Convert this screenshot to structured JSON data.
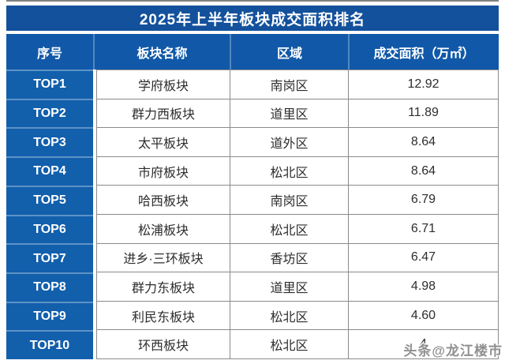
{
  "chart_data": {
    "type": "table",
    "title": "2025年上半年板块成交面积排名",
    "columns": [
      "序号",
      "板块名称",
      "区域",
      "成交面积（万㎡）"
    ],
    "rows": [
      {
        "rank": "TOP1",
        "name": "学府板块",
        "district": "南岗区",
        "area": "12.92"
      },
      {
        "rank": "TOP2",
        "name": "群力西板块",
        "district": "道里区",
        "area": "11.89"
      },
      {
        "rank": "TOP3",
        "name": "太平板块",
        "district": "道外区",
        "area": "8.64"
      },
      {
        "rank": "TOP4",
        "name": "市府板块",
        "district": "松北区",
        "area": "8.64"
      },
      {
        "rank": "TOP5",
        "name": "哈西板块",
        "district": "南岗区",
        "area": "6.79"
      },
      {
        "rank": "TOP6",
        "name": "松浦板块",
        "district": "松北区",
        "area": "6.71"
      },
      {
        "rank": "TOP7",
        "name": "进乡·三环板块",
        "district": "香坊区",
        "area": "6.47"
      },
      {
        "rank": "TOP8",
        "name": "群力东板块",
        "district": "道里区",
        "area": "4.98"
      },
      {
        "rank": "TOP9",
        "name": "利民东板块",
        "district": "松北区",
        "area": "4.60"
      },
      {
        "rank": "TOP10",
        "name": "环西板块",
        "district": "松北区",
        "area": "4"
      }
    ],
    "notes": "TOP10 area value partially obscured by watermark; only digit 4 visible"
  },
  "watermark": {
    "text": "头条@龙江楼市"
  },
  "colors": {
    "title_bg": "#13519c",
    "header_bg": "#1159a8",
    "rank_bg": "#125fac",
    "header_text": "#ffffff",
    "body_text": "#2d2d2d",
    "grid_border": "#8a8a8a",
    "watermark_text": "#8f8f8f"
  }
}
